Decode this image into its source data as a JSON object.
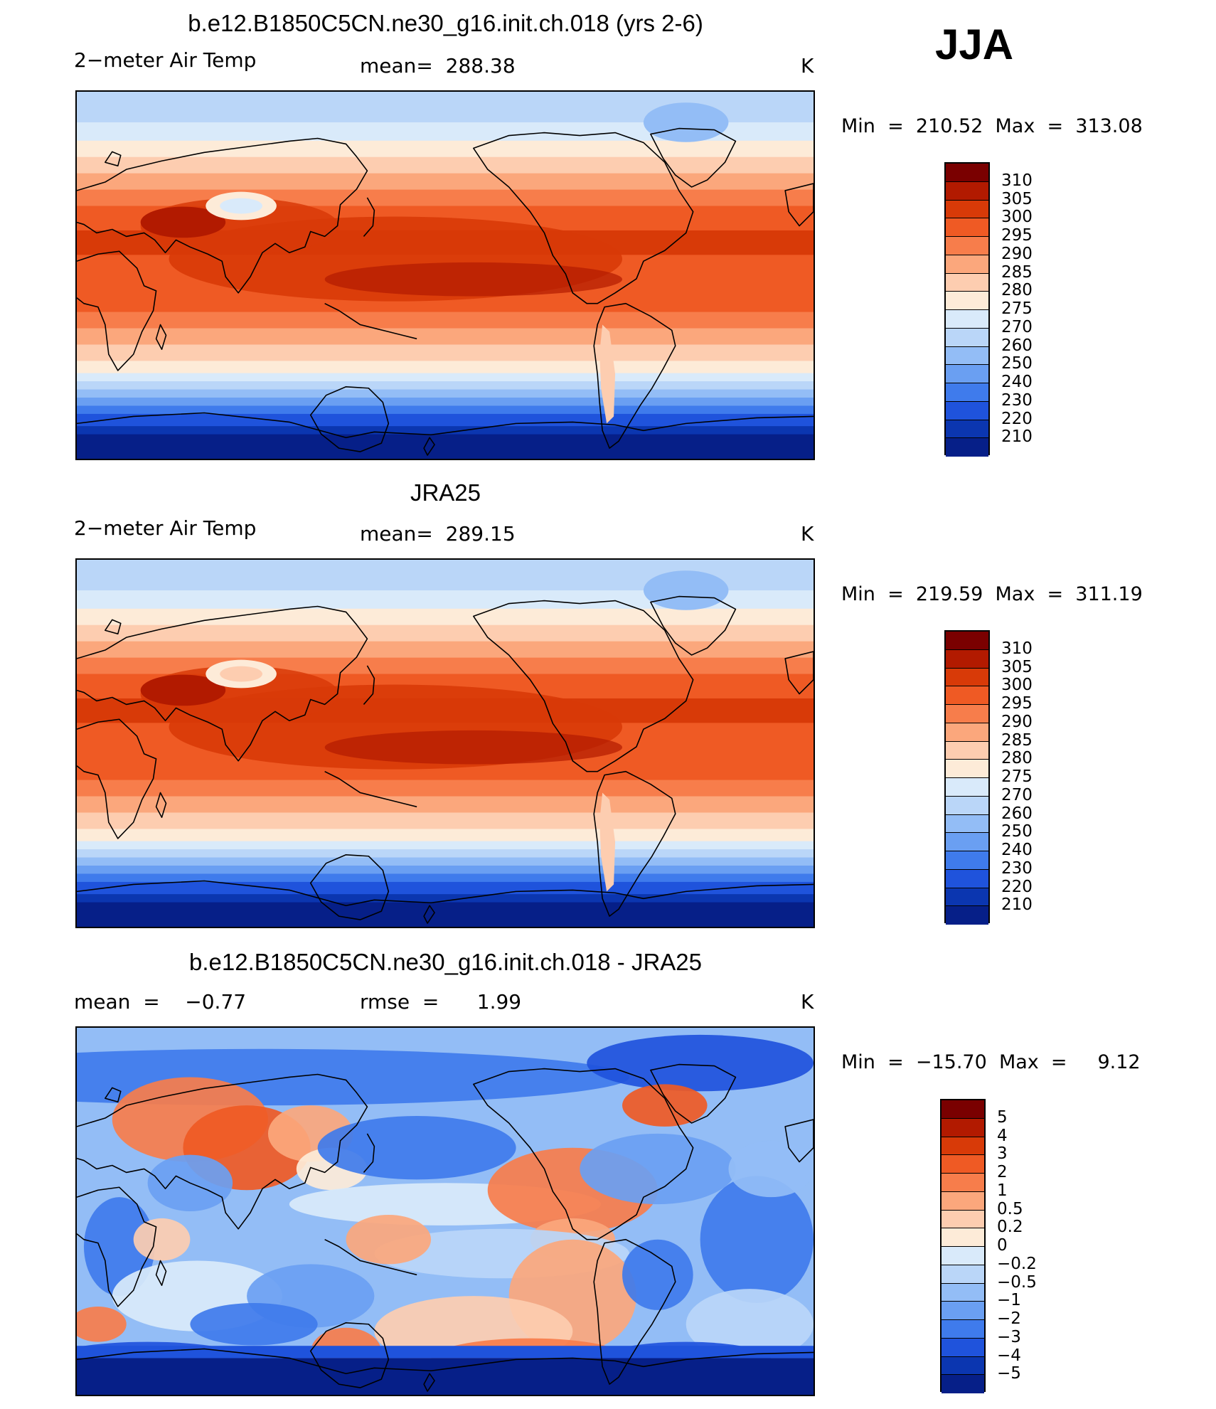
{
  "season": "JJA",
  "chart_data": [
    {
      "type": "heatmap",
      "title": "b.e12.B1850C5CN.ne30_g16.init.ch.018 (yrs 2-6)",
      "variable": "2−meter Air Temp",
      "stat_text": "mean=  288.38",
      "units": "K",
      "minmax_text": "Min  =  210.52  Max  =  313.08",
      "min": 210.52,
      "max": 313.08,
      "levels": [
        "310",
        "305",
        "300",
        "295",
        "290",
        "285",
        "280",
        "275",
        "270",
        "260",
        "250",
        "240",
        "230",
        "220",
        "210"
      ],
      "colors": [
        "#7a0000",
        "#b21a00",
        "#d83a08",
        "#ef5a24",
        "#f77d4b",
        "#fba77c",
        "#fdcdb0",
        "#fdebd8",
        "#d9eafa",
        "#bad6f8",
        "#93bdf6",
        "#6a9ff2",
        "#3f7bec",
        "#1f53dc",
        "#0b36b0",
        "#061f88"
      ]
    },
    {
      "type": "heatmap",
      "title": "JRA25",
      "variable": "2−meter Air Temp",
      "stat_text": "mean=  289.15",
      "units": "K",
      "minmax_text": "Min  =  219.59  Max  =  311.19",
      "min": 219.59,
      "max": 311.19,
      "levels": [
        "310",
        "305",
        "300",
        "295",
        "290",
        "285",
        "280",
        "275",
        "270",
        "260",
        "250",
        "240",
        "230",
        "220",
        "210"
      ],
      "colors": [
        "#7a0000",
        "#b21a00",
        "#d83a08",
        "#ef5a24",
        "#f77d4b",
        "#fba77c",
        "#fdcdb0",
        "#fdebd8",
        "#d9eafa",
        "#bad6f8",
        "#93bdf6",
        "#6a9ff2",
        "#3f7bec",
        "#1f53dc",
        "#0b36b0",
        "#061f88"
      ]
    },
    {
      "type": "heatmap",
      "title": "b.e12.B1850C5CN.ne30_g16.init.ch.018 - JRA25",
      "stat_left": "mean  =    −0.77",
      "stat_right": "rmse  =      1.99",
      "units": "K",
      "minmax_text": "Min  =  −15.70  Max  =     9.12",
      "min": -15.7,
      "max": 9.12,
      "mean": -0.77,
      "rmse": 1.99,
      "levels": [
        "5",
        "4",
        "3",
        "2",
        "1",
        "0.5",
        "0.2",
        "0",
        "−0.2",
        "−0.5",
        "−1",
        "−2",
        "−3",
        "−4",
        "−5"
      ],
      "colors": [
        "#7a0000",
        "#b21a00",
        "#d83a08",
        "#ef5a24",
        "#f77d4b",
        "#fba77c",
        "#fdcdb0",
        "#fdebd8",
        "#d9eafa",
        "#bad6f8",
        "#93bdf6",
        "#6a9ff2",
        "#3f7bec",
        "#1f53dc",
        "#0b36b0",
        "#061f88"
      ]
    }
  ]
}
